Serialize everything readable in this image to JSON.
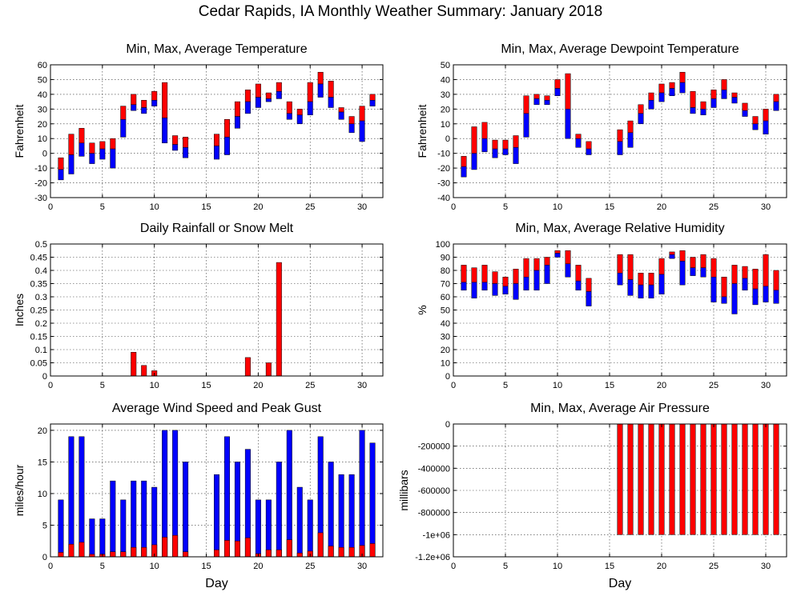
{
  "title": "Cedar Rapids, IA Monthly Weather Summary: January 2018",
  "colors": {
    "max_part": "#ff0000",
    "min_part": "#0000ff"
  },
  "chart_data": [
    {
      "id": "temp",
      "type": "bar",
      "title": "Min, Max, Average Temperature",
      "xlabel": "",
      "ylabel": "Fahrenheit",
      "xlim": [
        0,
        32
      ],
      "ylim": [
        -30,
        60
      ],
      "yticks": [
        -30,
        -20,
        -10,
        0,
        10,
        20,
        30,
        40,
        50,
        60
      ],
      "ytick_labels": [
        "-30",
        "-20",
        "-10",
        "0",
        "10",
        "20",
        "30",
        "40",
        "50",
        "60"
      ],
      "xticks": [
        0,
        5,
        10,
        15,
        20,
        25,
        30
      ],
      "grid": true,
      "mode": "floating",
      "series": [
        {
          "values": [
            [
              1,
              -18,
              -11,
              -3
            ],
            [
              2,
              -14,
              -1,
              13
            ],
            [
              3,
              -2,
              7,
              17
            ],
            [
              4,
              -7,
              0,
              7
            ],
            [
              5,
              -4,
              3,
              8
            ],
            [
              6,
              -10,
              3,
              10
            ],
            [
              7,
              11,
              23,
              32
            ],
            [
              8,
              29,
              33,
              40
            ],
            [
              9,
              27,
              31,
              36
            ],
            [
              10,
              32,
              36,
              42
            ],
            [
              11,
              7,
              24,
              48
            ],
            [
              12,
              2,
              6,
              12
            ],
            [
              13,
              -3,
              4,
              11
            ],
            [
              16,
              -4,
              5,
              13
            ],
            [
              17,
              -1,
              11,
              23
            ],
            [
              18,
              17,
              25,
              35
            ],
            [
              19,
              27,
              35,
              43
            ],
            [
              20,
              31,
              38,
              47
            ],
            [
              21,
              35,
              37,
              41
            ],
            [
              22,
              37,
              42,
              48
            ],
            [
              23,
              23,
              27,
              35
            ],
            [
              24,
              20,
              26,
              30
            ],
            [
              25,
              26,
              35,
              48
            ],
            [
              26,
              38,
              47,
              55
            ],
            [
              27,
              31,
              38,
              49
            ],
            [
              28,
              23,
              28,
              31
            ],
            [
              29,
              14,
              20,
              25
            ],
            [
              30,
              8,
              22,
              32
            ],
            [
              31,
              32,
              36,
              40
            ]
          ]
        }
      ]
    },
    {
      "id": "dewpoint",
      "type": "bar",
      "title": "Min, Max, Average Dewpoint Temperature",
      "xlabel": "",
      "ylabel": "Fahrenheit",
      "xlim": [
        0,
        32
      ],
      "ylim": [
        -40,
        50
      ],
      "yticks": [
        -40,
        -30,
        -20,
        -10,
        0,
        10,
        20,
        30,
        40,
        50
      ],
      "ytick_labels": [
        "-40",
        "-30",
        "-20",
        "-10",
        "0",
        "10",
        "20",
        "30",
        "40",
        "50"
      ],
      "xticks": [
        0,
        5,
        10,
        15,
        20,
        25,
        30
      ],
      "grid": true,
      "mode": "floating",
      "series": [
        {
          "values": [
            [
              1,
              -26,
              -19,
              -12
            ],
            [
              2,
              -21,
              -10,
              8
            ],
            [
              3,
              -9,
              0,
              11
            ],
            [
              4,
              -13,
              -7,
              -1
            ],
            [
              5,
              -11,
              -7,
              -1
            ],
            [
              6,
              -17,
              -6,
              2
            ],
            [
              7,
              1,
              17,
              29
            ],
            [
              8,
              23,
              27,
              30
            ],
            [
              9,
              23,
              26,
              29
            ],
            [
              10,
              29,
              34,
              40
            ],
            [
              11,
              0,
              20,
              44
            ],
            [
              12,
              -6,
              0,
              3
            ],
            [
              13,
              -11,
              -7,
              -2
            ],
            [
              16,
              -11,
              -2,
              6
            ],
            [
              17,
              -6,
              4,
              12
            ],
            [
              18,
              10,
              17,
              23
            ],
            [
              19,
              20,
              26,
              31
            ],
            [
              20,
              25,
              31,
              37
            ],
            [
              21,
              29,
              34,
              38
            ],
            [
              22,
              31,
              38,
              45
            ],
            [
              23,
              17,
              21,
              32
            ],
            [
              24,
              16,
              20,
              25
            ],
            [
              25,
              21,
              27,
              33
            ],
            [
              26,
              27,
              33,
              40
            ],
            [
              27,
              24,
              28,
              31
            ],
            [
              28,
              15,
              19,
              24
            ],
            [
              29,
              6,
              10,
              15
            ],
            [
              30,
              3,
              12,
              20
            ],
            [
              31,
              19,
              25,
              30
            ]
          ]
        }
      ]
    },
    {
      "id": "rain",
      "type": "bar",
      "title": "Daily Rainfall or Snow Melt",
      "xlabel": "",
      "ylabel": "Inches",
      "xlim": [
        0,
        32
      ],
      "ylim": [
        0,
        0.5
      ],
      "yticks": [
        0,
        0.05,
        0.1,
        0.15,
        0.2,
        0.25,
        0.3,
        0.35,
        0.4,
        0.45,
        0.5
      ],
      "ytick_labels": [
        "0",
        "0.05",
        "0.1",
        "0.15",
        "0.2",
        "0.25",
        "0.3",
        "0.35",
        "0.4",
        "0.45",
        "0.5"
      ],
      "xticks": [
        0,
        5,
        10,
        15,
        20,
        25,
        30
      ],
      "grid": true,
      "mode": "simple",
      "series": [
        {
          "values": [
            [
              8,
              0.09
            ],
            [
              9,
              0.04
            ],
            [
              10,
              0.02
            ],
            [
              19,
              0.07
            ],
            [
              21,
              0.05
            ],
            [
              22,
              0.43
            ]
          ]
        }
      ]
    },
    {
      "id": "humidity",
      "type": "bar",
      "title": "Min, Max, Average Relative Humidity",
      "xlabel": "",
      "ylabel": "%",
      "xlim": [
        0,
        32
      ],
      "ylim": [
        0,
        100
      ],
      "yticks": [
        0,
        10,
        20,
        30,
        40,
        50,
        60,
        70,
        80,
        90,
        100
      ],
      "ytick_labels": [
        "0",
        "10",
        "20",
        "30",
        "40",
        "50",
        "60",
        "70",
        "80",
        "90",
        "100"
      ],
      "xticks": [
        0,
        5,
        10,
        15,
        20,
        25,
        30
      ],
      "grid": true,
      "mode": "floating",
      "series": [
        {
          "values": [
            [
              1,
              65,
              71,
              84
            ],
            [
              2,
              59,
              71,
              82
            ],
            [
              3,
              65,
              71,
              84
            ],
            [
              4,
              61,
              70,
              79
            ],
            [
              5,
              62,
              68,
              75
            ],
            [
              6,
              58,
              70,
              81
            ],
            [
              7,
              65,
              75,
              89
            ],
            [
              8,
              65,
              80,
              89
            ],
            [
              9,
              70,
              84,
              90
            ],
            [
              10,
              90,
              93,
              95
            ],
            [
              11,
              75,
              85,
              95
            ],
            [
              12,
              65,
              72,
              84
            ],
            [
              13,
              53,
              64,
              74
            ],
            [
              16,
              69,
              78,
              92
            ],
            [
              17,
              61,
              73,
              92
            ],
            [
              18,
              59,
              69,
              78
            ],
            [
              19,
              59,
              69,
              78
            ],
            [
              20,
              62,
              77,
              89
            ],
            [
              21,
              89,
              92,
              94
            ],
            [
              22,
              69,
              87,
              95
            ],
            [
              23,
              76,
              82,
              90
            ],
            [
              24,
              75,
              82,
              92
            ],
            [
              25,
              56,
              75,
              89
            ],
            [
              26,
              55,
              60,
              75
            ],
            [
              27,
              47,
              70,
              84
            ],
            [
              28,
              65,
              74,
              83
            ],
            [
              29,
              54,
              66,
              81
            ],
            [
              30,
              56,
              68,
              92
            ],
            [
              31,
              55,
              65,
              80
            ]
          ]
        }
      ]
    },
    {
      "id": "wind",
      "type": "bar",
      "title": "Average Wind Speed and Peak Gust",
      "xlabel": "Day",
      "ylabel": "miles/hour",
      "xlim": [
        0,
        32
      ],
      "ylim": [
        0,
        21
      ],
      "yticks": [
        0,
        5,
        10,
        15,
        20
      ],
      "ytick_labels": [
        "0",
        "5",
        "10",
        "15",
        "20"
      ],
      "xticks": [
        0,
        5,
        10,
        15,
        20,
        25,
        30
      ],
      "grid": true,
      "mode": "overlay",
      "series": [
        {
          "values": [
            [
              1,
              9,
              0.7
            ],
            [
              2,
              19,
              2
            ],
            [
              3,
              19,
              2.3
            ],
            [
              4,
              6,
              0.4
            ],
            [
              5,
              6,
              0.4
            ],
            [
              6,
              12,
              0.8
            ],
            [
              7,
              9,
              0.8
            ],
            [
              8,
              12,
              1.5
            ],
            [
              9,
              12,
              1.5
            ],
            [
              10,
              11,
              1.9
            ],
            [
              11,
              20,
              3.1
            ],
            [
              12,
              20,
              3.4
            ],
            [
              13,
              15,
              0.8
            ],
            [
              16,
              13,
              1.1
            ],
            [
              17,
              19,
              2.6
            ],
            [
              18,
              15,
              2.5
            ],
            [
              19,
              17,
              3
            ],
            [
              20,
              9,
              0.5
            ],
            [
              21,
              9,
              1.1
            ],
            [
              22,
              15,
              1.1
            ],
            [
              23,
              20,
              2.7
            ],
            [
              24,
              11,
              0.6
            ],
            [
              25,
              9,
              0.9
            ],
            [
              26,
              19,
              3.8
            ],
            [
              27,
              15,
              1.7
            ],
            [
              28,
              13,
              1.5
            ],
            [
              29,
              13,
              1.5
            ],
            [
              30,
              20,
              1.8
            ],
            [
              31,
              18,
              2.1
            ]
          ]
        }
      ]
    },
    {
      "id": "pressure",
      "type": "bar",
      "title": "Min, Max, Average Air Pressure",
      "xlabel": "Day",
      "ylabel": "millibars",
      "xlim": [
        0,
        32
      ],
      "ylim": [
        -1200000,
        0
      ],
      "yticks": [
        -1200000,
        -1000000,
        -800000,
        -600000,
        -400000,
        -200000,
        0
      ],
      "ytick_labels": [
        "-1.2e+06",
        "-1e+06",
        "-800000",
        "-600000",
        "-400000",
        "-200000",
        "0"
      ],
      "xticks": [
        0,
        5,
        10,
        15,
        20,
        25,
        30
      ],
      "grid": true,
      "mode": "range",
      "series": [
        {
          "values": [
            [
              16,
              -999999,
              0
            ],
            [
              17,
              -999999,
              0
            ],
            [
              18,
              -999999,
              0
            ],
            [
              19,
              -999999,
              0
            ],
            [
              20,
              -999999,
              0
            ],
            [
              21,
              -999999,
              0
            ],
            [
              22,
              -999999,
              0
            ],
            [
              23,
              -999999,
              0
            ],
            [
              24,
              -999999,
              0
            ],
            [
              25,
              -999999,
              0
            ],
            [
              26,
              -999999,
              0
            ],
            [
              27,
              -999999,
              0
            ],
            [
              28,
              -999999,
              0
            ],
            [
              29,
              -999999,
              0
            ],
            [
              30,
              -999999,
              0
            ],
            [
              31,
              -999999,
              0
            ]
          ]
        }
      ]
    }
  ]
}
